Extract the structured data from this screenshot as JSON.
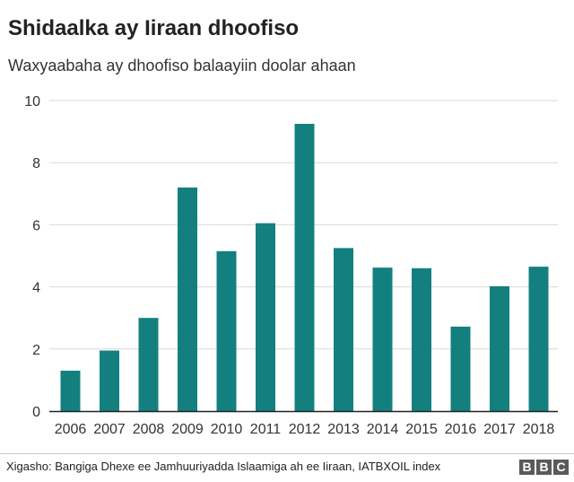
{
  "header": {
    "title": "Shidaalka ay Iiraan dhoofiso",
    "subtitle": "Waxyaabaha ay dhoofiso balaayiin doolar ahaan"
  },
  "footer": {
    "source": "Xigasho: Bangiga Dhexe ee Jamhuuriyadda Islaamiga ah ee Iiraan, IATBXOIL index",
    "logo_letters": [
      "B",
      "B",
      "C"
    ]
  },
  "colors": {
    "bar": "#13807f",
    "grid": "#d9d9d9",
    "axis": "#222222",
    "text": "#222222",
    "logo": "#5a5a5a"
  },
  "chart_data": {
    "type": "bar",
    "title": "Shidaalka ay Iiraan dhoofiso",
    "subtitle": "Waxyaabaha ay dhoofiso balaayiin doolar ahaan",
    "xlabel": "",
    "ylabel": "",
    "categories": [
      "2006",
      "2007",
      "2008",
      "2009",
      "2010",
      "2011",
      "2012",
      "2013",
      "2014",
      "2015",
      "2016",
      "2017",
      "2018"
    ],
    "values": [
      1.3,
      1.95,
      3.0,
      7.2,
      5.15,
      6.05,
      9.25,
      5.25,
      4.62,
      4.6,
      2.72,
      4.02,
      4.65
    ],
    "ylim": [
      0,
      10
    ],
    "yticks": [
      0,
      2,
      4,
      6,
      8,
      10
    ],
    "grid": true,
    "legend": "none"
  }
}
